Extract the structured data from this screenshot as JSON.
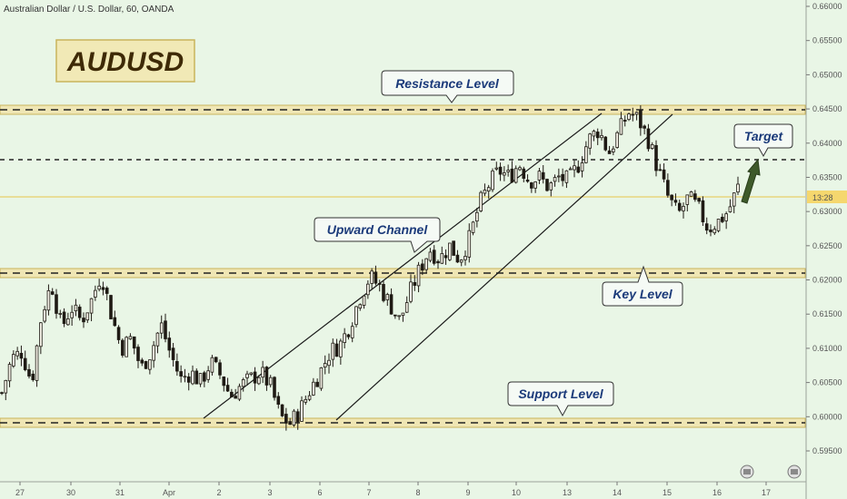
{
  "header": {
    "title": "Australian Dollar / U.S. Dollar, 60, OANDA"
  },
  "badge": {
    "label": "AUDUSD"
  },
  "annotations": {
    "resistance": "Resistance Level",
    "channel": "Upward Channel",
    "key": "Key Level",
    "support": "Support Level",
    "target": "Target"
  },
  "price_axis": {
    "ticks": [
      "0.66000",
      "0.65500",
      "0.65000",
      "0.64500",
      "0.64000",
      "0.63500",
      "0.63000",
      "0.62500",
      "0.62000",
      "0.61500",
      "0.61000",
      "0.60500",
      "0.60000",
      "0.59500"
    ],
    "current_label": "13:28"
  },
  "time_axis": {
    "ticks": [
      "27",
      "30",
      "31",
      "Apr",
      "2",
      "3",
      "6",
      "7",
      "8",
      "9",
      "10",
      "13",
      "14",
      "15",
      "16",
      "17"
    ]
  },
  "colors": {
    "background": "#e9f6e6",
    "zone_fill": "#efe6b4",
    "zone_border": "#c9b45c",
    "candle": "#1f1a14",
    "target_arrow": "#3e5a2a",
    "current_price_line": "#e8c44a"
  },
  "chart_data": {
    "type": "candlestick",
    "title": "Australian Dollar / U.S. Dollar, 60, OANDA",
    "symbol": "AUDUSD",
    "timeframe": "60",
    "source": "OANDA",
    "ylim": [
      0.5925,
      0.6615
    ],
    "x_ticks": [
      "27",
      "30",
      "31",
      "Apr",
      "2",
      "3",
      "6",
      "7",
      "8",
      "9",
      "10",
      "13",
      "14",
      "15",
      "16",
      "17"
    ],
    "y_ticks": [
      0.66,
      0.655,
      0.65,
      0.645,
      0.64,
      0.635,
      0.63,
      0.625,
      0.62,
      0.615,
      0.61,
      0.605,
      0.6,
      0.595
    ],
    "levels": [
      {
        "label": "Resistance Level",
        "value": 0.6447
      },
      {
        "label": "Key Level",
        "value": 0.6209
      },
      {
        "label": "Support Level",
        "value": 0.5989
      },
      {
        "label": "",
        "value": 0.6374
      }
    ],
    "channel": {
      "label": "Upward Channel",
      "upper": [
        {
          "x": "2",
          "y": 0.5983
        },
        {
          "x": "14",
          "y": 0.6443
        }
      ],
      "lower": [
        {
          "x": "6",
          "y": 0.5983
        },
        {
          "x": "15",
          "y": 0.6441
        }
      ]
    },
    "target": {
      "label": "Target"
    },
    "path": [
      [
        "27",
        0.6035
      ],
      [
        "27",
        0.6085
      ],
      [
        "27",
        0.6095
      ],
      [
        "27",
        0.605
      ],
      [
        "30",
        0.615
      ],
      [
        "30",
        0.6195
      ],
      [
        "30",
        0.613
      ],
      [
        "30",
        0.616
      ],
      [
        "31",
        0.614
      ],
      [
        "31",
        0.617
      ],
      [
        "31",
        0.621
      ],
      [
        "31",
        0.615
      ],
      [
        "31",
        0.61
      ],
      [
        "31",
        0.6115
      ],
      [
        "Apr",
        0.607
      ],
      [
        "Apr",
        0.6095
      ],
      [
        "Apr",
        0.6135
      ],
      [
        "Apr",
        0.609
      ],
      [
        "Apr",
        0.6055
      ],
      [
        "2",
        0.6065
      ],
      [
        "2",
        0.605
      ],
      [
        "2",
        0.608
      ],
      [
        "2",
        0.606
      ],
      [
        "2",
        0.603
      ],
      [
        "3",
        0.6045
      ],
      [
        "3",
        0.6055
      ],
      [
        "3",
        0.6065
      ],
      [
        "3",
        0.6045
      ],
      [
        "3",
        0.6
      ],
      [
        "6",
        0.599
      ],
      [
        "6",
        0.601
      ],
      [
        "6",
        0.604
      ],
      [
        "6",
        0.6065
      ],
      [
        "6",
        0.6095
      ],
      [
        "7",
        0.6105
      ],
      [
        "7",
        0.6135
      ],
      [
        "7",
        0.6175
      ],
      [
        "7",
        0.6205
      ],
      [
        "8",
        0.619
      ],
      [
        "8",
        0.6165
      ],
      [
        "8",
        0.614
      ],
      [
        "8",
        0.618
      ],
      [
        "8",
        0.6215
      ],
      [
        "9",
        0.6245
      ],
      [
        "9",
        0.623
      ],
      [
        "9",
        0.625
      ],
      [
        "9",
        0.623
      ],
      [
        "9",
        0.626
      ],
      [
        "10",
        0.631
      ],
      [
        "10",
        0.634
      ],
      [
        "10",
        0.636
      ],
      [
        "10",
        0.635
      ],
      [
        "10",
        0.637
      ],
      [
        "10",
        0.6345
      ],
      [
        "13",
        0.635
      ],
      [
        "13",
        0.6335
      ],
      [
        "13",
        0.635
      ],
      [
        "13",
        0.6345
      ],
      [
        "13",
        0.637
      ],
      [
        "14",
        0.6405
      ],
      [
        "14",
        0.642
      ],
      [
        "14",
        0.6385
      ],
      [
        "14",
        0.6415
      ],
      [
        "15",
        0.6445
      ],
      [
        "15",
        0.6435
      ],
      [
        "15",
        0.6405
      ],
      [
        "15",
        0.636
      ],
      [
        "15",
        0.632
      ],
      [
        "15",
        0.6295
      ],
      [
        "16",
        0.632
      ],
      [
        "16",
        0.6305
      ],
      [
        "16",
        0.6275
      ],
      [
        "16",
        0.6285
      ],
      [
        "16",
        0.63
      ],
      [
        "16",
        0.6335
      ]
    ]
  }
}
